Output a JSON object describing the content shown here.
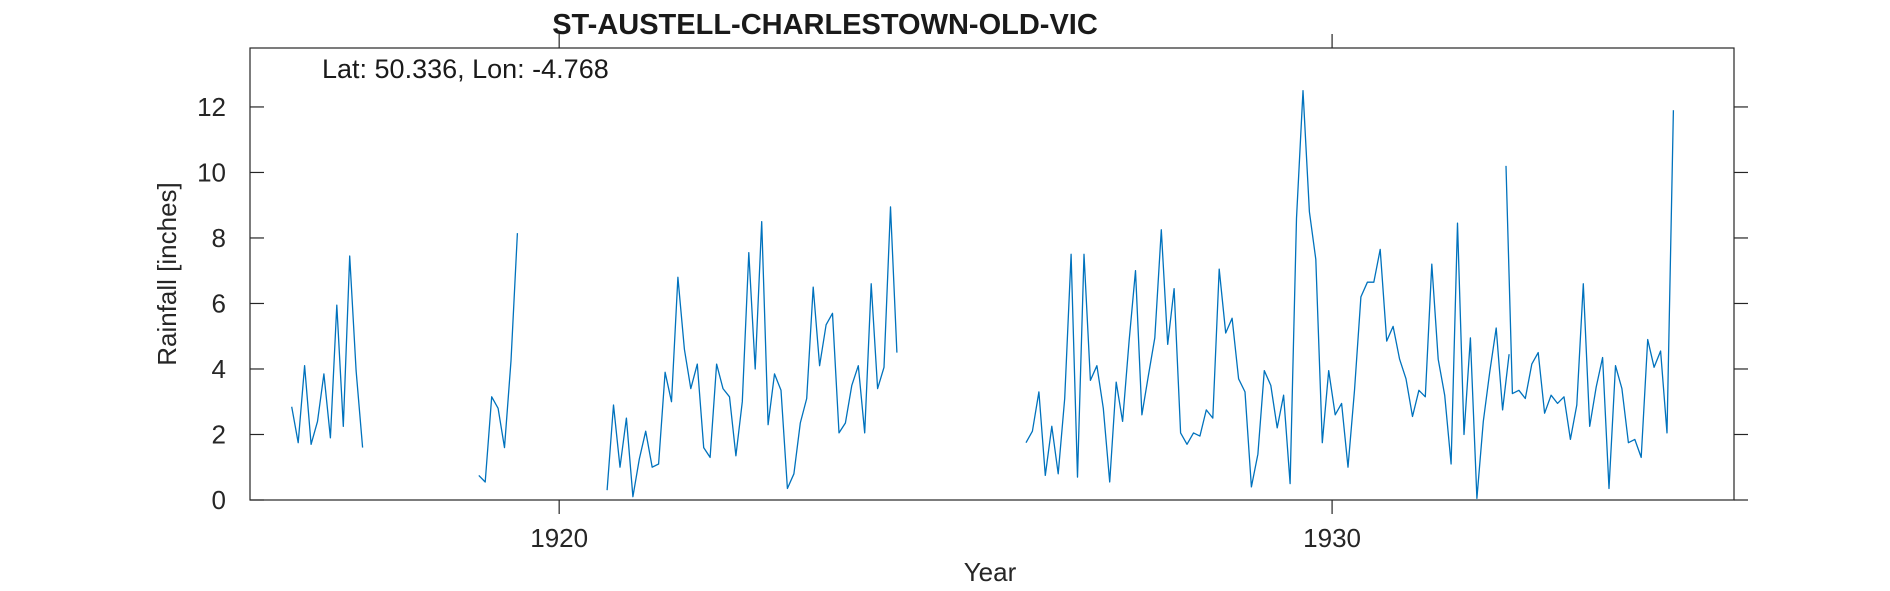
{
  "chart_data": {
    "type": "line",
    "title": "ST-AUSTELL-CHARLESTOWN-OLD-VIC",
    "annotation": "Lat: 50.336, Lon: -4.768",
    "xlabel": "Year",
    "ylabel": "Rainfall [inches]",
    "xlim": [
      1916.0,
      1935.2
    ],
    "ylim": [
      0,
      13.8
    ],
    "x_ticks": [
      1920,
      1930
    ],
    "y_ticks": [
      0,
      2,
      4,
      6,
      8,
      10,
      12
    ],
    "grid": false,
    "color": "#0072BD",
    "segments": [
      {
        "x_start": 1916.54,
        "x_step": 0.08333,
        "values": [
          2.85,
          1.75,
          4.1,
          1.7,
          2.4,
          3.85,
          1.9,
          5.95,
          2.25,
          7.45,
          3.95,
          1.6
        ]
      },
      {
        "x_start": 1918.96,
        "x_step": 0.08333,
        "values": [
          0.75,
          0.55,
          3.15,
          2.8,
          1.6,
          4.25,
          8.15
        ]
      },
      {
        "x_start": 1920.62,
        "x_step": 0.08333,
        "values": [
          0.3,
          2.9,
          1.0,
          2.5,
          0.1,
          1.25,
          2.1,
          1.0,
          1.1,
          3.9,
          3.0,
          6.8,
          4.6,
          3.4,
          4.15,
          1.6,
          1.3,
          4.15,
          3.4,
          3.15,
          1.35,
          3.0,
          7.55,
          4.0,
          8.5,
          2.3,
          3.85,
          3.35,
          0.35,
          0.8,
          2.35,
          3.1,
          6.5,
          4.1,
          5.35,
          5.7,
          2.05,
          2.35,
          3.5,
          4.1,
          2.05,
          6.6,
          3.4,
          4.05,
          8.95,
          4.5
        ]
      },
      {
        "x_start": 1926.04,
        "x_step": 0.08333,
        "values": [
          1.75,
          2.1,
          3.3,
          0.75,
          2.25,
          0.8,
          3.1,
          7.5,
          0.7,
          7.5,
          3.65,
          4.1,
          2.8,
          0.55,
          3.6,
          2.4,
          4.85,
          7.0,
          2.6,
          3.8,
          4.95,
          8.25,
          4.75,
          6.45,
          2.05,
          1.7,
          2.05,
          1.95,
          2.75,
          2.5,
          7.05,
          5.1,
          5.55,
          3.7,
          3.3,
          0.4,
          1.4,
          3.95,
          3.5,
          2.2,
          3.2,
          0.5,
          8.6,
          12.5,
          8.8,
          7.35,
          1.75,
          3.95,
          2.6,
          2.95,
          1.0,
          3.35,
          6.2,
          6.65,
          6.65,
          7.65,
          4.85,
          5.3,
          4.3,
          3.7,
          2.55,
          3.35,
          3.15,
          7.2,
          4.3,
          3.2,
          1.1,
          8.45,
          2.0,
          4.95,
          0.05,
          2.4,
          3.9,
          5.25,
          2.75,
          4.45
        ]
      },
      {
        "x_start": 1932.25,
        "x_step": 0.08333,
        "values": [
          10.2,
          3.25,
          3.35,
          3.1,
          4.15,
          4.5,
          2.65,
          3.2,
          2.95,
          3.15,
          1.85,
          2.9,
          6.6,
          2.25,
          3.45,
          4.35,
          0.35,
          4.1,
          3.4,
          1.75,
          1.85,
          1.3,
          4.9,
          4.05,
          4.55,
          2.05,
          11.9
        ]
      }
    ]
  }
}
